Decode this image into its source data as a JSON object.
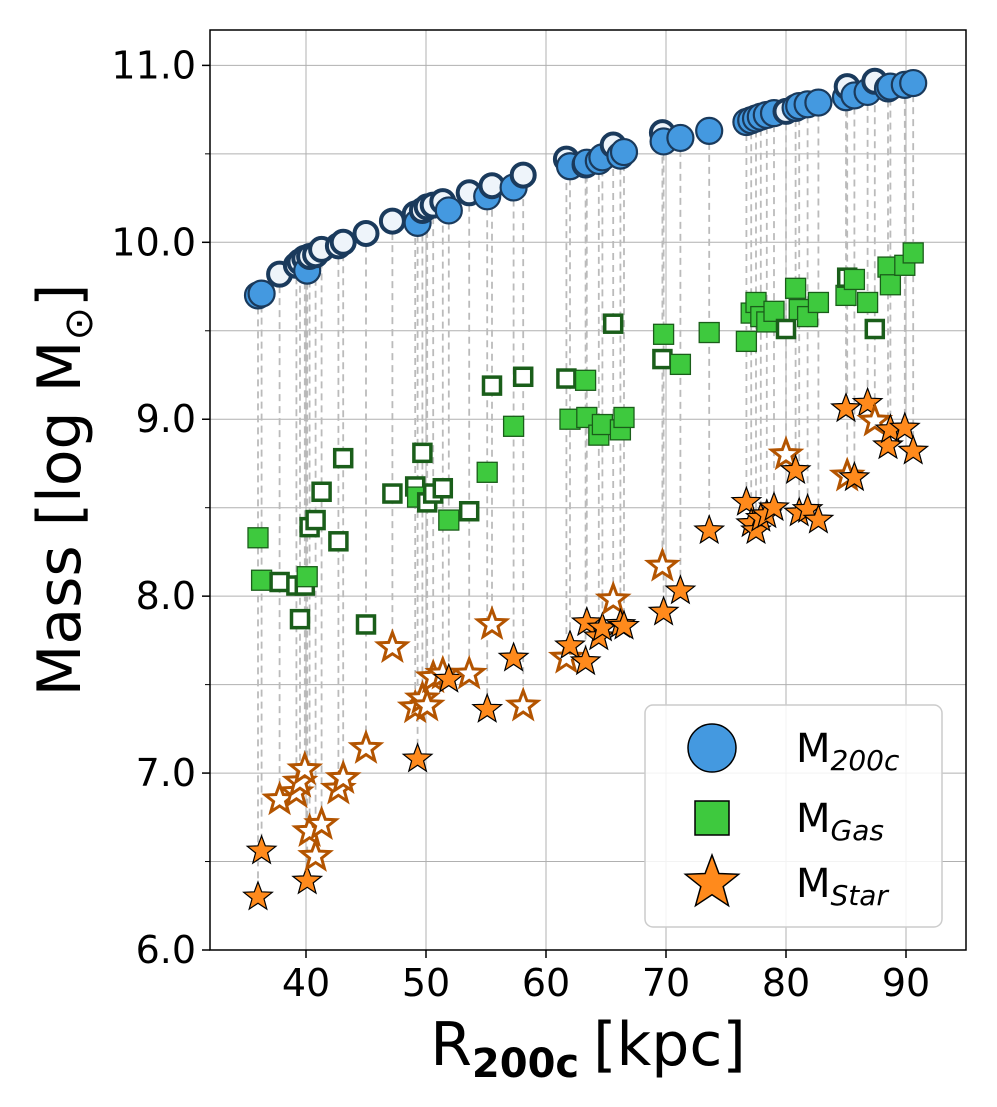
{
  "chart_data": {
    "type": "scatter",
    "title": "",
    "xlabel": "R",
    "xlabel_sub": "200c",
    "xlabel_unit": "[kpc]",
    "ylabel": "Mass [log M",
    "ylabel_sym": "⊙",
    "ylabel_end": "]",
    "xlim": [
      32,
      95
    ],
    "ylim": [
      6.0,
      11.2
    ],
    "xticks": [
      40,
      50,
      60,
      70,
      80,
      90
    ],
    "yticks": [
      6.0,
      7.0,
      8.0,
      9.0,
      10.0,
      11.0
    ],
    "ytick_labels": [
      "6.0",
      "7.0",
      "8.0",
      "9.0",
      "10.0",
      "11.0"
    ],
    "grid": true,
    "legend_position": "bottom-right",
    "colors": {
      "m200c": "#4499e0",
      "m200c_edge": "#1a3a5c",
      "m200c_open": "#eef4fa",
      "gas": "#3ec93e",
      "gas_edge": "#1a5e1a",
      "star": "#ff8a1c",
      "star_edge": "#b35400",
      "connector": "#bbbbbb"
    },
    "legend": [
      {
        "key": "m200c",
        "label": "M",
        "sub": "200c"
      },
      {
        "key": "gas",
        "label": "M",
        "sub": "Gas"
      },
      {
        "key": "star",
        "label": "M",
        "sub": "Star"
      }
    ],
    "galaxies": [
      {
        "r": 36.0,
        "m200": 9.7,
        "gas": 8.33,
        "star": 6.3,
        "filled": true
      },
      {
        "r": 36.3,
        "m200": 9.71,
        "gas": 8.09,
        "star": 6.56,
        "filled": true
      },
      {
        "r": 37.8,
        "m200": 9.82,
        "gas": 8.08,
        "star": 6.85,
        "filled": false
      },
      {
        "r": 39.2,
        "m200": 9.87,
        "gas": 8.06,
        "star": 6.89,
        "filled": false
      },
      {
        "r": 39.5,
        "m200": 9.89,
        "gas": 7.87,
        "star": 6.95,
        "filled": false
      },
      {
        "r": 39.9,
        "m200": 9.91,
        "gas": 8.06,
        "star": 7.02,
        "filled": false
      },
      {
        "r": 40.1,
        "m200": 9.84,
        "gas": 8.11,
        "star": 6.39,
        "filled": true
      },
      {
        "r": 40.3,
        "m200": 9.92,
        "gas": 8.39,
        "star": 6.67,
        "filled": false
      },
      {
        "r": 40.8,
        "m200": 9.93,
        "gas": 8.43,
        "star": 6.53,
        "filled": false
      },
      {
        "r": 41.3,
        "m200": 9.96,
        "gas": 8.59,
        "star": 6.71,
        "filled": false
      },
      {
        "r": 42.7,
        "m200": 9.98,
        "gas": 8.31,
        "star": 6.91,
        "filled": false
      },
      {
        "r": 43.1,
        "m200": 10.0,
        "gas": 8.78,
        "star": 6.97,
        "filled": false
      },
      {
        "r": 45.0,
        "m200": 10.05,
        "gas": 7.84,
        "star": 7.14,
        "filled": false
      },
      {
        "r": 47.2,
        "m200": 10.12,
        "gas": 8.58,
        "star": 7.71,
        "filled": false
      },
      {
        "r": 49.1,
        "m200": 10.16,
        "gas": 8.62,
        "star": 7.37,
        "filled": false
      },
      {
        "r": 49.3,
        "m200": 10.11,
        "gas": 8.56,
        "star": 7.08,
        "filled": true
      },
      {
        "r": 49.7,
        "m200": 10.18,
        "gas": 8.81,
        "star": 7.42,
        "filled": false
      },
      {
        "r": 50.1,
        "m200": 10.2,
        "gas": 8.53,
        "star": 7.38,
        "filled": false
      },
      {
        "r": 50.6,
        "m200": 10.21,
        "gas": 8.58,
        "star": 7.54,
        "filled": false
      },
      {
        "r": 51.4,
        "m200": 10.23,
        "gas": 8.61,
        "star": 7.56,
        "filled": false
      },
      {
        "r": 51.9,
        "m200": 10.18,
        "gas": 8.43,
        "star": 7.53,
        "filled": true
      },
      {
        "r": 53.6,
        "m200": 10.28,
        "gas": 8.48,
        "star": 7.56,
        "filled": false
      },
      {
        "r": 55.1,
        "m200": 10.26,
        "gas": 8.7,
        "star": 7.36,
        "filled": true
      },
      {
        "r": 55.5,
        "m200": 10.32,
        "gas": 9.19,
        "star": 7.84,
        "filled": false
      },
      {
        "r": 57.3,
        "m200": 10.31,
        "gas": 8.96,
        "star": 7.65,
        "filled": true
      },
      {
        "r": 58.1,
        "m200": 10.38,
        "gas": 9.24,
        "star": 7.38,
        "filled": false
      },
      {
        "r": 61.7,
        "m200": 10.47,
        "gas": 9.23,
        "star": 7.65,
        "filled": false
      },
      {
        "r": 62.0,
        "m200": 10.43,
        "gas": 9.0,
        "star": 7.72,
        "filled": true
      },
      {
        "r": 63.3,
        "m200": 10.44,
        "gas": 9.22,
        "star": 7.63,
        "filled": true
      },
      {
        "r": 63.4,
        "m200": 10.45,
        "gas": 9.01,
        "star": 7.85,
        "filled": true
      },
      {
        "r": 64.4,
        "m200": 10.46,
        "gas": 8.91,
        "star": 7.77,
        "filled": true
      },
      {
        "r": 64.7,
        "m200": 10.48,
        "gas": 8.97,
        "star": 7.82,
        "filled": true
      },
      {
        "r": 65.6,
        "m200": 10.55,
        "gas": 9.54,
        "star": 7.98,
        "filled": false
      },
      {
        "r": 66.2,
        "m200": 10.49,
        "gas": 8.94,
        "star": 7.84,
        "filled": true
      },
      {
        "r": 66.5,
        "m200": 10.51,
        "gas": 9.01,
        "star": 7.83,
        "filled": true
      },
      {
        "r": 69.7,
        "m200": 10.62,
        "gas": 9.34,
        "star": 8.17,
        "filled": false
      },
      {
        "r": 69.8,
        "m200": 10.57,
        "gas": 9.48,
        "star": 7.91,
        "filled": true
      },
      {
        "r": 71.2,
        "m200": 10.59,
        "gas": 9.31,
        "star": 8.03,
        "filled": true
      },
      {
        "r": 73.6,
        "m200": 10.63,
        "gas": 9.49,
        "star": 8.37,
        "filled": true
      },
      {
        "r": 76.7,
        "m200": 10.68,
        "gas": 9.44,
        "star": 8.53,
        "filled": true
      },
      {
        "r": 77.1,
        "m200": 10.69,
        "gas": 9.6,
        "star": 8.41,
        "filled": true
      },
      {
        "r": 77.5,
        "m200": 10.7,
        "gas": 9.66,
        "star": 8.37,
        "filled": true
      },
      {
        "r": 77.9,
        "m200": 10.71,
        "gas": 9.58,
        "star": 8.44,
        "filled": true
      },
      {
        "r": 78.4,
        "m200": 10.72,
        "gas": 9.55,
        "star": 8.46,
        "filled": true
      },
      {
        "r": 79.0,
        "m200": 10.73,
        "gas": 9.61,
        "star": 8.5,
        "filled": true
      },
      {
        "r": 80.0,
        "m200": 10.74,
        "gas": 9.51,
        "star": 8.8,
        "filled": false
      },
      {
        "r": 80.8,
        "m200": 10.76,
        "gas": 9.74,
        "star": 8.71,
        "filled": true
      },
      {
        "r": 81.1,
        "m200": 10.77,
        "gas": 9.62,
        "star": 8.47,
        "filled": true
      },
      {
        "r": 81.8,
        "m200": 10.78,
        "gas": 9.58,
        "star": 8.49,
        "filled": true
      },
      {
        "r": 82.7,
        "m200": 10.79,
        "gas": 9.66,
        "star": 8.43,
        "filled": true
      },
      {
        "r": 85.0,
        "m200": 10.82,
        "gas": 9.7,
        "star": 9.06,
        "filled": true
      },
      {
        "r": 85.1,
        "m200": 10.88,
        "gas": 9.8,
        "star": 8.68,
        "filled": false
      },
      {
        "r": 85.7,
        "m200": 10.83,
        "gas": 9.79,
        "star": 8.67,
        "filled": true
      },
      {
        "r": 86.8,
        "m200": 10.85,
        "gas": 9.66,
        "star": 9.09,
        "filled": true
      },
      {
        "r": 87.4,
        "m200": 10.91,
        "gas": 9.51,
        "star": 8.99,
        "filled": false
      },
      {
        "r": 88.5,
        "m200": 10.87,
        "gas": 9.86,
        "star": 8.85,
        "filled": true
      },
      {
        "r": 88.7,
        "m200": 10.88,
        "gas": 9.76,
        "star": 8.94,
        "filled": true
      },
      {
        "r": 89.9,
        "m200": 10.89,
        "gas": 9.87,
        "star": 8.95,
        "filled": true
      },
      {
        "r": 90.6,
        "m200": 10.9,
        "gas": 9.94,
        "star": 8.82,
        "filled": true
      }
    ]
  }
}
